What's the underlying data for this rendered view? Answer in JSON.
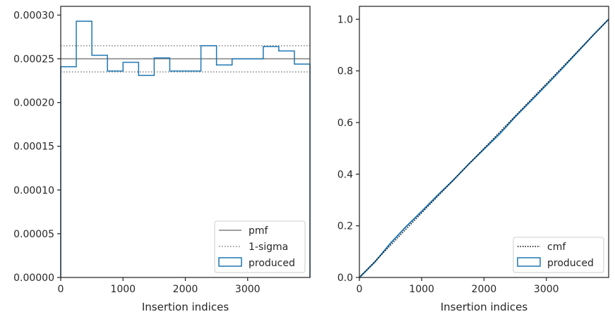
{
  "chart_data": [
    {
      "type": "step",
      "xlabel": "Insertion indices",
      "ylabel": "",
      "xlim": [
        0,
        4000
      ],
      "ylim": [
        0,
        0.00031
      ],
      "xticks": [
        0,
        1000,
        2000,
        3000
      ],
      "xtick_labels": [
        "0",
        "1000",
        "2000",
        "3000"
      ],
      "yticks": [
        0,
        5e-05,
        0.0001,
        0.00015,
        0.0002,
        0.00025,
        0.0003
      ],
      "ytick_labels": [
        "0.00000",
        "0.00005",
        "0.00010",
        "0.00015",
        "0.00020",
        "0.00025",
        "0.00030"
      ],
      "grid": false,
      "legend_position": "lower-right",
      "pmf": 0.00025,
      "sigma_upper": 0.000265,
      "sigma_lower": 0.000235,
      "bin_edges": [
        0,
        250,
        500,
        750,
        1000,
        1250,
        1500,
        1750,
        2000,
        2250,
        2500,
        2750,
        3000,
        3250,
        3500,
        3750,
        4000
      ],
      "bin_values": [
        0.000241,
        0.000293,
        0.000254,
        0.000236,
        0.000246,
        0.000231,
        0.000251,
        0.000236,
        0.000236,
        0.000265,
        0.000243,
        0.00025,
        0.00025,
        0.000264,
        0.000259,
        0.000244
      ],
      "series": [
        {
          "name": "pmf",
          "color": "#808080",
          "style": "solid"
        },
        {
          "name": "1-sigma",
          "color": "#808080",
          "style": "dotted"
        },
        {
          "name": "produced",
          "color": "#1f77b4",
          "style": "step"
        }
      ]
    },
    {
      "type": "line",
      "xlabel": "Insertion indices",
      "ylabel": "",
      "xlim": [
        0,
        4000
      ],
      "ylim": [
        0,
        1.05
      ],
      "xticks": [
        0,
        1000,
        2000,
        3000
      ],
      "xtick_labels": [
        "0",
        "1000",
        "2000",
        "3000"
      ],
      "yticks": [
        0,
        0.2,
        0.4,
        0.6,
        0.8,
        1.0
      ],
      "ytick_labels": [
        "0.0",
        "0.2",
        "0.4",
        "0.6",
        "0.8",
        "1.0"
      ],
      "grid": false,
      "legend_position": "lower-right",
      "cmf": {
        "x": [
          0,
          4000
        ],
        "y": [
          0,
          1.0
        ]
      },
      "produced": {
        "x": [
          0,
          250,
          500,
          750,
          1000,
          1250,
          1500,
          1750,
          2000,
          2250,
          2500,
          2750,
          3000,
          3250,
          3500,
          3750,
          4000
        ],
        "y": [
          0,
          0.06,
          0.133,
          0.197,
          0.256,
          0.317,
          0.375,
          0.438,
          0.497,
          0.556,
          0.622,
          0.683,
          0.745,
          0.808,
          0.873,
          0.938,
          1.0
        ]
      },
      "series": [
        {
          "name": "cmf",
          "color": "#000000",
          "style": "dotted"
        },
        {
          "name": "produced",
          "color": "#1f77b4",
          "style": "step"
        }
      ]
    }
  ]
}
